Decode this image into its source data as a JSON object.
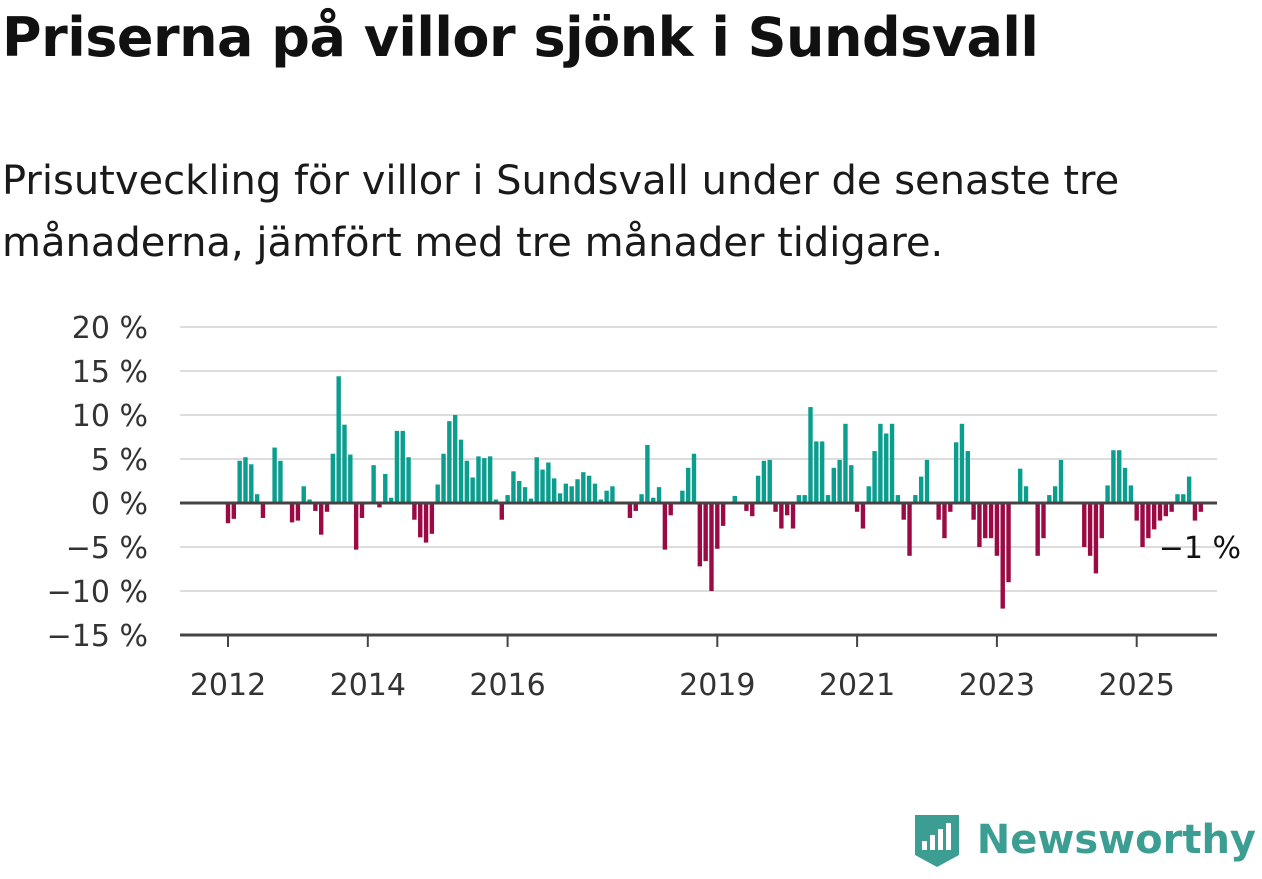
{
  "title": "Priserna på villor sjönk i Sundsvall",
  "subtitle": "Prisutveckling för villor i Sundsvall under de senaste tre månaderna, jämfört med tre månader tidigare.",
  "brand": {
    "name": "Newsworthy",
    "color": "#3c9d93"
  },
  "colors": {
    "positive": "#0b9d8e",
    "negative": "#9b0a44",
    "grid": "#dddddd",
    "axis": "#444444"
  },
  "chart_data": {
    "type": "bar",
    "title": "",
    "xlabel": "",
    "ylabel": "",
    "ylim": [
      -15,
      20
    ],
    "y_ticks": [
      20,
      15,
      10,
      5,
      0,
      -5,
      -10,
      -15
    ],
    "y_tick_labels": [
      "20 %",
      "15 %",
      "10 %",
      "5 %",
      "0 %",
      "−5 %",
      "−10 %",
      "−15 %"
    ],
    "x_ticks": [
      "2012",
      "2014",
      "2016",
      "2019",
      "2021",
      "2023",
      "2025"
    ],
    "x_start": "2012-01",
    "end_label": "−1 %",
    "series": [
      {
        "values": [
          -2.3,
          -1.8,
          4.8,
          5.2,
          4.4,
          1.0,
          -1.7,
          0,
          6.3,
          4.8,
          0,
          -2.2,
          -2.0,
          1.9,
          0.4,
          -0.9,
          -3.6,
          -1.0,
          5.6,
          14.4,
          8.9,
          5.5,
          -5.3,
          -1.7,
          0,
          4.3,
          -0.5,
          3.3,
          0.6,
          8.2,
          8.2,
          5.2,
          -1.9,
          -3.9,
          -4.5,
          -3.5,
          2.1,
          5.6,
          9.3,
          10.0,
          7.2,
          4.8,
          2.9,
          5.3,
          5.1,
          5.3,
          0.4,
          -1.9,
          0.9,
          3.6,
          2.5,
          1.8,
          0.5,
          5.2,
          3.8,
          4.6,
          2.8,
          1.1,
          2.2,
          1.9,
          2.7,
          3.5,
          3.1,
          2.2,
          0.4,
          1.4,
          1.9,
          0,
          0,
          -1.7,
          -0.9,
          1.0,
          6.6,
          0.6,
          1.8,
          -5.3,
          -1.4,
          0,
          1.4,
          4.0,
          5.6,
          -7.2,
          -6.6,
          -10.0,
          -5.2,
          -2.6,
          0,
          0.8,
          0,
          -0.9,
          -1.5,
          3.1,
          4.8,
          4.9,
          -1.0,
          -2.9,
          -1.4,
          -2.9,
          0.9,
          0.9,
          10.9,
          7.0,
          7.0,
          0.9,
          4.0,
          4.9,
          9.0,
          4.3,
          -1.0,
          -2.9,
          1.9,
          5.9,
          9.0,
          7.9,
          9.0,
          0.9,
          -1.9,
          -6.0,
          0.9,
          3.0,
          4.9,
          0,
          -1.9,
          -4.0,
          -1.0,
          6.9,
          9.0,
          5.9,
          -1.9,
          -5.0,
          -4.0,
          -4.0,
          -6.0,
          -12.0,
          -9.0,
          0,
          3.9,
          1.9,
          0,
          -6.0,
          -4.0,
          0.9,
          1.9,
          4.9,
          0,
          0,
          0,
          -5.0,
          -6.0,
          -8.0,
          -4.0,
          2.0,
          6.0,
          6.0,
          4.0,
          2.0,
          -2.0,
          -5.0,
          -4.0,
          -3.0,
          -2.0,
          -1.5,
          -1.0,
          1.0,
          1.0,
          3.0,
          -2.0,
          -1.0
        ]
      }
    ]
  }
}
